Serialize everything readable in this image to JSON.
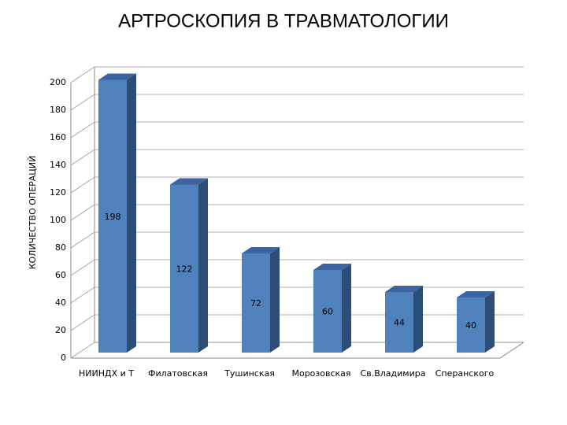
{
  "chart_data": {
    "type": "bar3d",
    "title": "АРТРОСКОПИЯ В ТРАВМАТОЛОГИИ",
    "y_label": "КОЛИЧЕСТВО ОПЕРАЦИЙ",
    "categories": [
      "НИИНДХ и Т",
      "Филатовская",
      "Тушинская",
      "Морозовская",
      "Св.Владимира",
      "Сперанского"
    ],
    "values": [
      198,
      122,
      72,
      60,
      44,
      40
    ],
    "color": "#4f81bd",
    "ylim": [
      0,
      200
    ],
    "yticks": [
      0,
      20,
      40,
      60,
      80,
      100,
      120,
      140,
      160,
      180,
      200
    ],
    "grid": true
  }
}
